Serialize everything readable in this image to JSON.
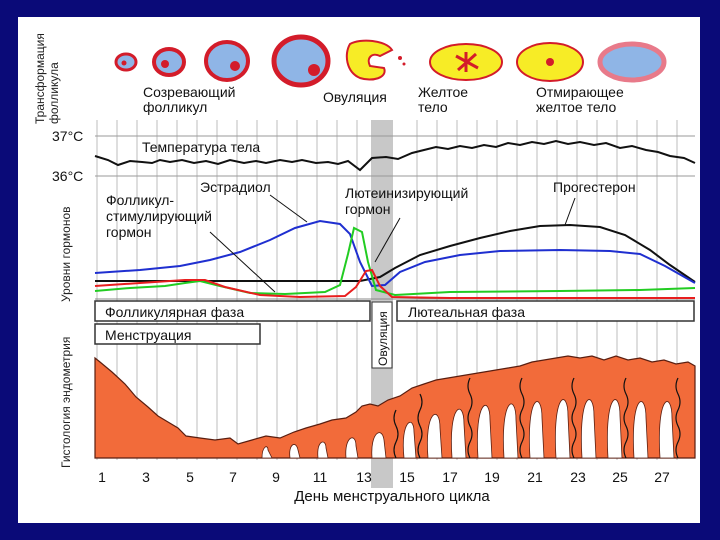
{
  "colors": {
    "background": "#0a0a78",
    "panel": "#ffffff",
    "estradiol": "#1f2fd0",
    "lh": "#e81e1e",
    "fsh": "#22cc22",
    "progesterone": "#111111",
    "temperature": "#111111",
    "endometrium": "#f26b3a",
    "follicle_fill": "#8fb5e6",
    "follicle_wall": "#d31c2a",
    "corpus_luteum": "#f7ec26",
    "ovulation_band": "#c8c8c8"
  },
  "sections": {
    "follicle_transformation": "Трансформация фолликула",
    "hormone_levels": "Уровни гормонов",
    "endometrium_histology": "Гистология эндометрия"
  },
  "follicle_labels": {
    "maturing": "Созревающий фолликул",
    "ovulation": "Овуляция",
    "corpus_luteum": "Желтое тело",
    "dying_corpus_luteum": "Отмирающее желтое тело"
  },
  "temperature": {
    "label": "Температура тела",
    "ticks": [
      "37°C",
      "36°C"
    ]
  },
  "hormones": {
    "estradiol": "Эстрадиол",
    "fsh": "Фолликул-стимулирующий гормон",
    "lh": "Лютеинизирующий гормон",
    "progesterone": "Прогестерон"
  },
  "phases": {
    "follicular": "Фолликулярная фаза",
    "ovulation": "Овуляция",
    "luteal": "Лютеальная фаза",
    "menstruation": "Менструация"
  },
  "x_axis": {
    "label": "День менструального цикла",
    "ticks": [
      "1",
      "3",
      "5",
      "7",
      "9",
      "11",
      "13",
      "15",
      "17",
      "19",
      "21",
      "23",
      "25",
      "27"
    ]
  },
  "follicle_icons": [
    "small-follicle-icon",
    "maturing-follicle-icon",
    "large-follicle-icon",
    "ruptured-follicle-icon",
    "corpus-luteum-icon",
    "corpus-luteum-icon",
    "dying-corpus-luteum-icon"
  ]
}
